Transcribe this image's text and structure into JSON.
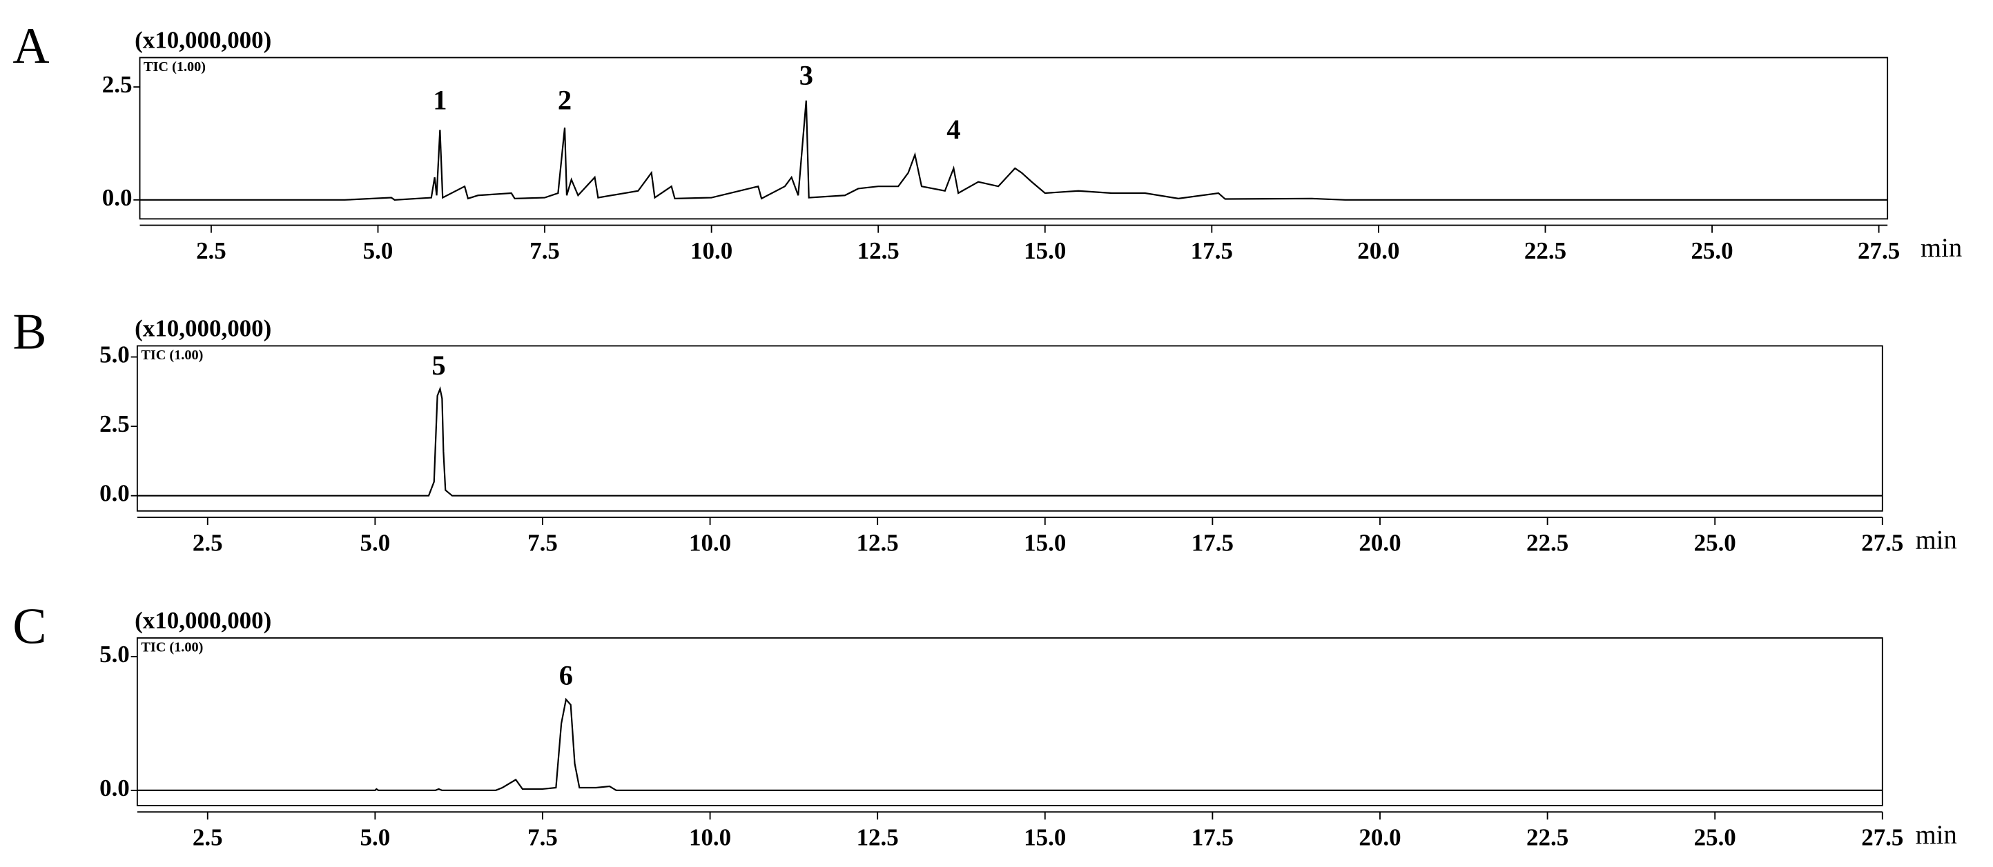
{
  "chart_data": [
    {
      "type": "line",
      "panel_label": "A",
      "multiplier": "(x10,000,000)",
      "trace_label": "TIC (1.00)",
      "x_unit": "min",
      "color": "#000000",
      "xlim": [
        1.43,
        27.63
      ],
      "ylim": [
        -0.42,
        3.15
      ],
      "xticks": [
        2.5,
        {
          "value": 5,
          "label": "5.0"
        },
        7.5,
        {
          "value": 10,
          "label": "10.0"
        },
        12.5,
        {
          "value": 15,
          "label": "15.0"
        },
        17.5,
        {
          "value": 20,
          "label": "20.0"
        },
        22.5,
        {
          "value": 25,
          "label": "25.0"
        },
        27.5
      ],
      "yticks": [
        {
          "value": 0,
          "label": "0.0"
        },
        2.5
      ],
      "x": [
        1.43,
        4.5,
        5.2,
        5.25,
        5.8,
        5.85,
        5.88,
        5.93,
        5.97,
        6.3,
        6.35,
        6.5,
        7.0,
        7.05,
        7.5,
        7.7,
        7.8,
        7.83,
        7.9,
        8.0,
        8.25,
        8.3,
        8.9,
        9.1,
        9.15,
        9.4,
        9.45,
        10.0,
        10.7,
        10.75,
        11.1,
        11.2,
        11.3,
        11.42,
        11.46,
        12.0,
        12.2,
        12.5,
        12.8,
        12.95,
        13.05,
        13.15,
        13.5,
        13.63,
        13.7,
        14.0,
        14.3,
        14.55,
        14.65,
        14.8,
        15.0,
        15.5,
        16.0,
        16.5,
        17.0,
        17.6,
        17.7,
        19.0,
        19.5,
        27.63
      ],
      "values": [
        0,
        0,
        0.05,
        0,
        0.05,
        0.5,
        0.1,
        1.55,
        0.05,
        0.3,
        0.03,
        0.1,
        0.15,
        0.03,
        0.05,
        0.15,
        1.6,
        0.1,
        0.45,
        0.1,
        0.5,
        0.05,
        0.2,
        0.6,
        0.05,
        0.3,
        0.03,
        0.05,
        0.3,
        0.03,
        0.3,
        0.5,
        0.1,
        2.2,
        0.05,
        0.1,
        0.25,
        0.3,
        0.3,
        0.6,
        1.0,
        0.3,
        0.2,
        0.7,
        0.15,
        0.4,
        0.3,
        0.7,
        0.6,
        0.4,
        0.15,
        0.2,
        0.15,
        0.15,
        0.03,
        0.15,
        0.02,
        0.03,
        0,
        0
      ],
      "annotations": [
        {
          "text": "1",
          "x": 5.93,
          "y": 2.15
        },
        {
          "text": "2",
          "x": 7.8,
          "y": 2.15
        },
        {
          "text": "3",
          "x": 11.42,
          "y": 2.7
        },
        {
          "text": "4",
          "x": 13.63,
          "y": 1.5
        }
      ]
    },
    {
      "type": "line",
      "panel_label": "B",
      "multiplier": "(x10,000,000)",
      "trace_label": "TIC (1.00)",
      "x_unit": "min",
      "color": "#000000",
      "xlim": [
        1.45,
        27.5
      ],
      "ylim": [
        -0.55,
        5.4
      ],
      "xticks": [
        2.5,
        {
          "value": 5,
          "label": "5.0"
        },
        7.5,
        {
          "value": 10,
          "label": "10.0"
        },
        12.5,
        {
          "value": 15,
          "label": "15.0"
        },
        17.5,
        {
          "value": 20,
          "label": "20.0"
        },
        22.5,
        {
          "value": 25,
          "label": "25.0"
        },
        27.5
      ],
      "yticks": [
        {
          "value": 0,
          "label": "0.0"
        },
        2.5,
        {
          "value": 5,
          "label": "5.0"
        }
      ],
      "x": [
        1.45,
        5.8,
        5.88,
        5.93,
        5.97,
        6.0,
        6.02,
        6.05,
        6.15,
        27.5
      ],
      "values": [
        0,
        0,
        0.5,
        3.6,
        3.85,
        3.5,
        1.6,
        0.2,
        0,
        0
      ],
      "annotations": [
        {
          "text": "5",
          "x": 5.95,
          "y": 4.6
        }
      ]
    },
    {
      "type": "line",
      "panel_label": "C",
      "multiplier": "(x10,000,000)",
      "trace_label": "TIC (1.00)",
      "x_unit": "min",
      "color": "#000000",
      "xlim": [
        1.45,
        27.5
      ],
      "ylim": [
        -0.57,
        5.7
      ],
      "xticks": [
        2.5,
        {
          "value": 5,
          "label": "5.0"
        },
        7.5,
        {
          "value": 10,
          "label": "10.0"
        },
        12.5,
        {
          "value": 15,
          "label": "15.0"
        },
        17.5,
        {
          "value": 20,
          "label": "20.0"
        },
        22.5,
        {
          "value": 25,
          "label": "25.0"
        },
        27.5
      ],
      "yticks": [
        {
          "value": 0,
          "label": "0.0"
        },
        {
          "value": 5,
          "label": "5.0"
        }
      ],
      "x": [
        1.45,
        5.0,
        5.02,
        5.05,
        5.9,
        5.95,
        6.0,
        6.8,
        6.9,
        7.1,
        7.2,
        7.5,
        7.7,
        7.78,
        7.85,
        7.92,
        7.98,
        8.05,
        8.3,
        8.5,
        8.6,
        27.5
      ],
      "values": [
        0,
        0,
        0.05,
        0,
        0,
        0.05,
        0,
        0,
        0.1,
        0.4,
        0.05,
        0.05,
        0.1,
        2.5,
        3.4,
        3.2,
        1.0,
        0.1,
        0.1,
        0.15,
        0,
        0
      ],
      "annotations": [
        {
          "text": "6",
          "x": 7.85,
          "y": 4.2
        }
      ]
    }
  ]
}
